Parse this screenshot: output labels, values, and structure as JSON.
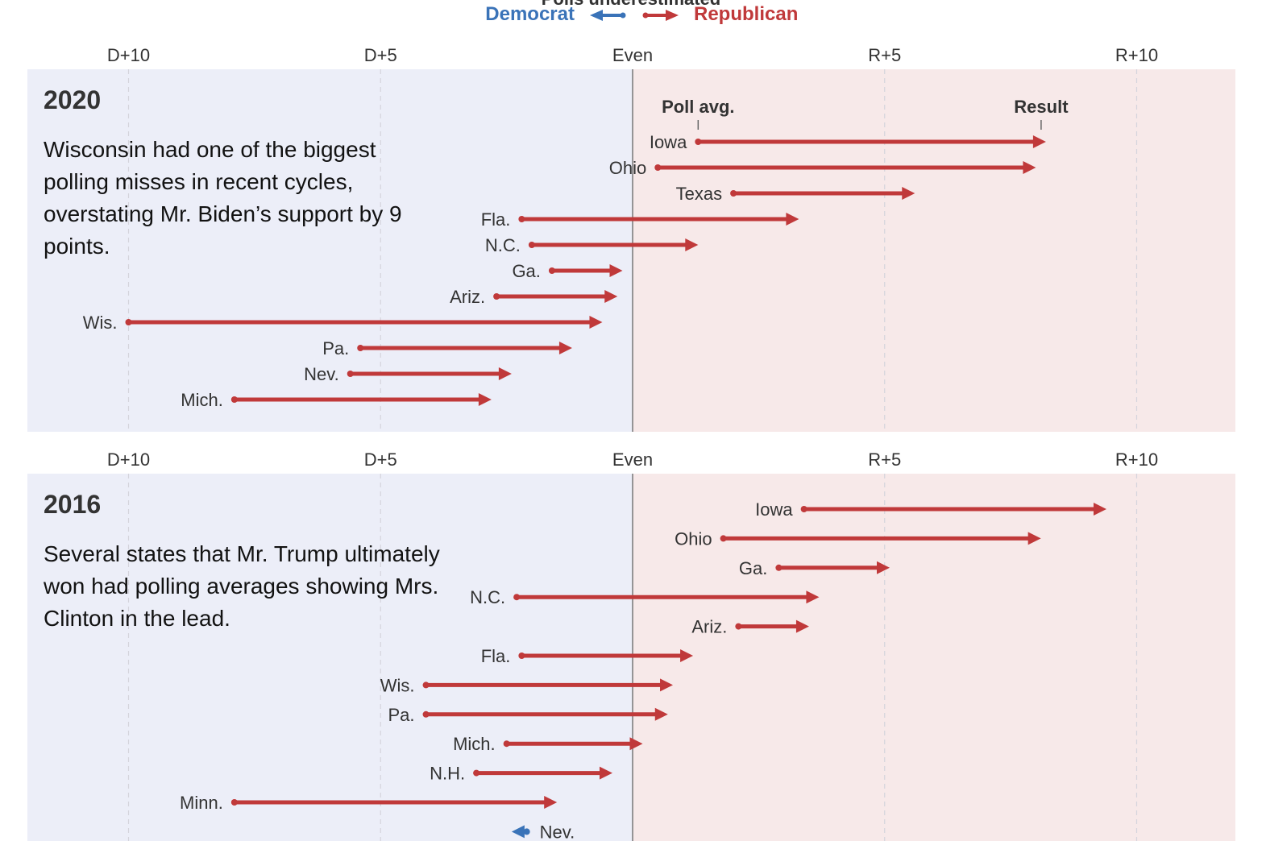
{
  "legend": {
    "heading": "Polls underestimated",
    "democrat": "Democrat",
    "republican": "Republican",
    "democrat_color": "#3a73b8",
    "republican_color": "#c0393a"
  },
  "chart_data": [
    {
      "type": "arrow",
      "title": "2020",
      "description": "Wisconsin had one of the biggest polling misses in recent cycles, overstating Mr. Biden’s support by 9 points.",
      "x_ticks": [
        "D+10",
        "D+5",
        "Even",
        "R+5",
        "R+10"
      ],
      "x_tick_values": [
        -10,
        -5,
        0,
        5,
        10
      ],
      "xlim": [
        -12,
        12
      ],
      "annotations": {
        "start": "Poll avg.",
        "end": "Result"
      },
      "series": [
        {
          "state": "Iowa",
          "poll_avg": 1.3,
          "result": 8.2
        },
        {
          "state": "Ohio",
          "poll_avg": 0.5,
          "result": 8.0
        },
        {
          "state": "Texas",
          "poll_avg": 2.0,
          "result": 5.6
        },
        {
          "state": "Fla.",
          "poll_avg": -2.2,
          "result": 3.3
        },
        {
          "state": "N.C.",
          "poll_avg": -2.0,
          "result": 1.3
        },
        {
          "state": "Ga.",
          "poll_avg": -1.6,
          "result": -0.2
        },
        {
          "state": "Ariz.",
          "poll_avg": -2.7,
          "result": -0.3
        },
        {
          "state": "Wis.",
          "poll_avg": -10.0,
          "result": -0.6
        },
        {
          "state": "Pa.",
          "poll_avg": -5.4,
          "result": -1.2
        },
        {
          "state": "Nev.",
          "poll_avg": -5.6,
          "result": -2.4
        },
        {
          "state": "Mich.",
          "poll_avg": -7.9,
          "result": -2.8
        }
      ]
    },
    {
      "type": "arrow",
      "title": "2016",
      "description": "Several states that Mr. Trump ultimately won had polling averages showing Mrs. Clinton in the lead.",
      "x_ticks": [
        "D+10",
        "D+5",
        "Even",
        "R+5",
        "R+10"
      ],
      "x_tick_values": [
        -10,
        -5,
        0,
        5,
        10
      ],
      "xlim": [
        -12,
        12
      ],
      "series": [
        {
          "state": "Iowa",
          "poll_avg": 3.4,
          "result": 9.4
        },
        {
          "state": "Ohio",
          "poll_avg": 1.8,
          "result": 8.1
        },
        {
          "state": "Ga.",
          "poll_avg": 2.9,
          "result": 5.1
        },
        {
          "state": "N.C.",
          "poll_avg": -2.3,
          "result": 3.7
        },
        {
          "state": "Ariz.",
          "poll_avg": 2.1,
          "result": 3.5
        },
        {
          "state": "Fla.",
          "poll_avg": -2.2,
          "result": 1.2
        },
        {
          "state": "Wis.",
          "poll_avg": -4.1,
          "result": 0.8
        },
        {
          "state": "Pa.",
          "poll_avg": -4.1,
          "result": 0.7
        },
        {
          "state": "Mich.",
          "poll_avg": -2.5,
          "result": 0.2
        },
        {
          "state": "N.H.",
          "poll_avg": -3.1,
          "result": -0.4
        },
        {
          "state": "Minn.",
          "poll_avg": -7.9,
          "result": -1.5
        },
        {
          "state": "Nev.",
          "poll_avg": -2.1,
          "result": -2.4
        }
      ]
    }
  ]
}
